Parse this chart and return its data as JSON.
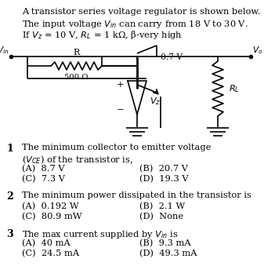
{
  "bg_color": "#ffffff",
  "text_color": "#000000",
  "title_lines": [
    "A transistor series voltage regulator is shown below.",
    "The input voltage $V_{in}$ can carry from 18 V to 30 V.",
    "If $V_z$ = 10 V, $R_L$ = 1 kΩ, β-very high"
  ],
  "questions": [
    {
      "num": "1",
      "text": "The minimum collector to emitter voltage ($V_{CE}$) of the transistor is,",
      "options": [
        [
          "(A)  8.7 V",
          "(B)  20.7 V"
        ],
        [
          "(C)  7.3 V",
          "(D)  19.3 V"
        ]
      ]
    },
    {
      "num": "2",
      "text": "The minimum power dissipated in the transistor is",
      "options": [
        [
          "(A)  0.192 W",
          "(B)  2.1 W"
        ],
        [
          "(C)  80.9 mW",
          "(D)  None"
        ]
      ]
    },
    {
      "num": "3",
      "text": "The max current supplied by $V_{in}$ is",
      "options": [
        [
          "(A)  40 mA",
          "(B)  9.3 mA"
        ],
        [
          "(C)  24.5 mA",
          "(D)  49.3 mA"
        ]
      ]
    }
  ],
  "fs_title": 8.2,
  "fs_body": 8.2,
  "fs_num": 9.0
}
